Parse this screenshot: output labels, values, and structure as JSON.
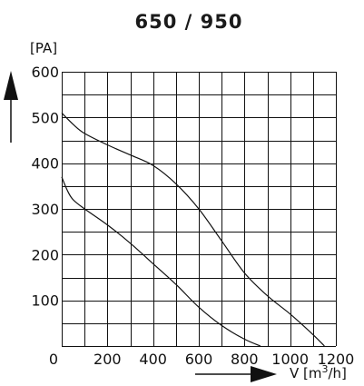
{
  "chart_data": {
    "type": "line",
    "title": "650 / 950",
    "ylabel": "[PA]",
    "xlabel_prefix": "V [m",
    "xlabel_sup": "3",
    "xlabel_suffix": "/h]",
    "xlim": [
      0,
      1200
    ],
    "ylim": [
      0,
      600
    ],
    "x_ticks": [
      0,
      200,
      400,
      600,
      800,
      1000,
      1200
    ],
    "x_tick_labels": [
      "0",
      "200",
      "400",
      "600",
      "800",
      "1000",
      "1200"
    ],
    "y_ticks": [
      100,
      200,
      300,
      400,
      500,
      600
    ],
    "y_tick_labels": [
      "100",
      "200",
      "300",
      "400",
      "500",
      "600"
    ],
    "grid": true,
    "minor_grid_x_step": 100,
    "minor_grid_y_step": 50,
    "series": [
      {
        "x": [
          0,
          50,
          100,
          200,
          300,
          400,
          500,
          600,
          700,
          800,
          900,
          1000,
          1100,
          1150
        ],
        "y": [
          510,
          485,
          465,
          440,
          418,
          395,
          355,
          300,
          230,
          160,
          110,
          70,
          25,
          0
        ]
      },
      {
        "x": [
          0,
          25,
          50,
          100,
          200,
          300,
          400,
          500,
          600,
          700,
          800,
          870
        ],
        "y": [
          370,
          340,
          320,
          300,
          265,
          225,
          180,
          135,
          85,
          45,
          15,
          0
        ]
      }
    ]
  }
}
